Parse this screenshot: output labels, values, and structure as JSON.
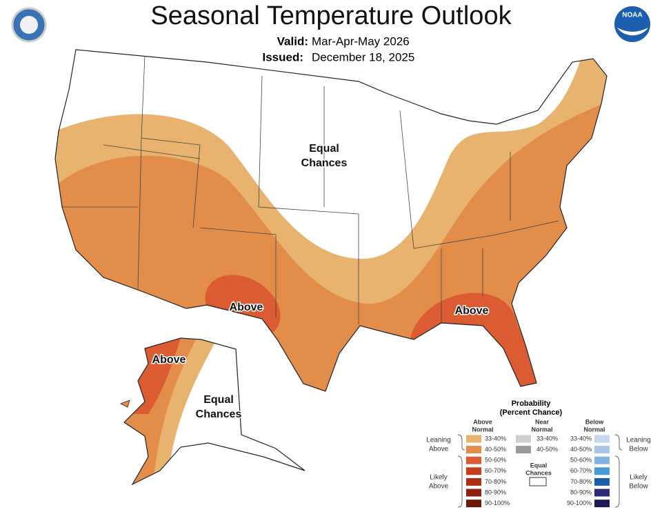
{
  "header": {
    "title": "Seasonal Temperature Outlook",
    "valid_label": "Valid:",
    "valid": "Mar-Apr-May 2026",
    "issued_label": "Issued:",
    "issued": "December 18, 2025",
    "logo_text": "NOAA"
  },
  "map_labels": [
    {
      "lines": [
        "Equal",
        "Chances"
      ]
    },
    {
      "lines": [
        "Above"
      ]
    },
    {
      "lines": [
        "Above"
      ]
    },
    {
      "lines": [
        "Above"
      ]
    },
    {
      "lines": [
        "Equal",
        "Chances"
      ]
    }
  ],
  "legend": {
    "title": [
      "Probability",
      "(Percent Chance)"
    ],
    "columns": [
      {
        "header": [
          "Above",
          "Normal"
        ],
        "items": [
          {
            "label": "33-40%",
            "color": "#e8b36e"
          },
          {
            "label": "40-50%",
            "color": "#e38d4b"
          },
          {
            "label": "50-60%",
            "color": "#db5c32"
          },
          {
            "label": "60-70%",
            "color": "#c83e1c"
          },
          {
            "label": "70-80%",
            "color": "#b02d16"
          },
          {
            "label": "80-90%",
            "color": "#8e2010"
          },
          {
            "label": "90-100%",
            "color": "#6b1a0a"
          }
        ]
      },
      {
        "header": [
          "Near",
          "Normal"
        ],
        "items": [
          {
            "label": "33-40%",
            "color": "#cfcfcf"
          },
          {
            "label": "40-50%",
            "color": "#9a9a9a"
          }
        ],
        "equal": [
          "Equal",
          "Chances"
        ]
      },
      {
        "header": [
          "Below",
          "Normal"
        ],
        "items": [
          {
            "label": "33-40%",
            "color": "#c6d6ee"
          },
          {
            "label": "40-50%",
            "color": "#a8c4e6"
          },
          {
            "label": "50-60%",
            "color": "#80b3e2"
          },
          {
            "label": "60-70%",
            "color": "#4a9ad8"
          },
          {
            "label": "70-80%",
            "color": "#1a5fa8"
          },
          {
            "label": "80-90%",
            "color": "#2b2a7a"
          },
          {
            "label": "90-100%",
            "color": "#1f1a55"
          }
        ]
      }
    ],
    "groups": [
      [
        "Leaning",
        "Above"
      ],
      [
        "Likely",
        "Above"
      ],
      [
        "Leaning",
        "Below"
      ],
      [
        "Likely",
        "Below"
      ]
    ]
  }
}
